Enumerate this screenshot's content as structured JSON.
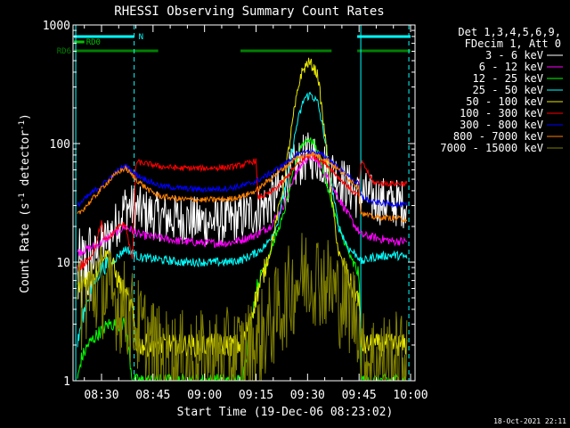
{
  "chart_data": {
    "type": "line",
    "title": "RHESSI Observing Summary Count Rates",
    "xlabel": "Start Time (19-Dec-06 08:23:02)",
    "ylabel_main": "Count Rate (s",
    "ylabel_sup1": "-1",
    "ylabel_mid": " detector",
    "ylabel_sup2": "-1",
    "ylabel_end": ")",
    "y_scale": "log",
    "ylim": [
      1,
      1000
    ],
    "xlim_minutes": [
      0,
      97
    ],
    "x_ticks": [
      {
        "t": 7,
        "label": "08:30"
      },
      {
        "t": 22,
        "label": "08:45"
      },
      {
        "t": 37,
        "label": "09:00"
      },
      {
        "t": 52,
        "label": "09:15"
      },
      {
        "t": 67,
        "label": "09:30"
      },
      {
        "t": 82,
        "label": "09:45"
      },
      {
        "t": 97,
        "label": "10:00"
      }
    ],
    "y_ticks": [
      {
        "v": 1,
        "label": "1"
      },
      {
        "v": 10,
        "label": "10"
      },
      {
        "v": 100,
        "label": "100"
      },
      {
        "v": 1000,
        "label": "1000"
      }
    ],
    "legend": {
      "placement": "right",
      "header": [
        "Det 1,3,4,5,6,9,",
        "FDecim 1, Att 0"
      ],
      "entries": [
        {
          "label": "3 - 6 keV",
          "color": "#ffffff"
        },
        {
          "label": "6 - 12 keV",
          "color": "#ff00ff"
        },
        {
          "label": "12 - 25 keV",
          "color": "#00ff00"
        },
        {
          "label": "25 - 50 keV",
          "color": "#00ffff"
        },
        {
          "label": "50 - 100 keV",
          "color": "#e6e600"
        },
        {
          "label": "100 - 300 keV",
          "color": "#ff0000"
        },
        {
          "label": "300 - 800 keV",
          "color": "#0000ff"
        },
        {
          "label": "800 - 7000 keV",
          "color": "#ff8000"
        },
        {
          "label": "7000 - 15000 keV",
          "color": "#808000"
        }
      ]
    },
    "flags": [
      {
        "label": "N",
        "color": "#00ffff",
        "segments": [
          [
            0,
            16.5
          ],
          [
            82.5,
            97
          ]
        ]
      },
      {
        "label": "RD0",
        "color": "#00c000",
        "segments": [
          [
            0,
            2
          ]
        ]
      },
      {
        "label": "RD6",
        "color": "#008000",
        "segments": [
          [
            0,
            23.5
          ],
          [
            48.5,
            74
          ],
          [
            82.5,
            97
          ]
        ]
      }
    ],
    "night_boundaries": [
      -0.5,
      16.5,
      82.5,
      96.5
    ],
    "series": [
      {
        "name": "3 - 6 keV",
        "color": "#ffffff",
        "points": [
          [
            0,
            7
          ],
          [
            4,
            10
          ],
          [
            8,
            15
          ],
          [
            11,
            20
          ],
          [
            14,
            30
          ],
          [
            18,
            27
          ],
          [
            24,
            24
          ],
          [
            30,
            23
          ],
          [
            37,
            22
          ],
          [
            44,
            22
          ],
          [
            48,
            24
          ],
          [
            52,
            27
          ],
          [
            56,
            32
          ],
          [
            60,
            45
          ],
          [
            63,
            62
          ],
          [
            66,
            75
          ],
          [
            68,
            80
          ],
          [
            70,
            75
          ],
          [
            73,
            64
          ],
          [
            76,
            52
          ],
          [
            80,
            40
          ],
          [
            82,
            35
          ],
          [
            82.5,
            38
          ],
          [
            85,
            35
          ],
          [
            88,
            33
          ],
          [
            91,
            32
          ],
          [
            96,
            31
          ]
        ]
      },
      {
        "name": "6 - 12 keV",
        "color": "#ff00ff",
        "points": [
          [
            0,
            12
          ],
          [
            6,
            14
          ],
          [
            10,
            17
          ],
          [
            14,
            20
          ],
          [
            18,
            17
          ],
          [
            24,
            16
          ],
          [
            30,
            15
          ],
          [
            37,
            14.5
          ],
          [
            44,
            14.5
          ],
          [
            48,
            15.5
          ],
          [
            52,
            17
          ],
          [
            56,
            20
          ],
          [
            60,
            30
          ],
          [
            63,
            52
          ],
          [
            66,
            72
          ],
          [
            68,
            78
          ],
          [
            70,
            70
          ],
          [
            73,
            50
          ],
          [
            76,
            35
          ],
          [
            80,
            22
          ],
          [
            82,
            18
          ],
          [
            82.5,
            17
          ],
          [
            87,
            16
          ],
          [
            92,
            15
          ],
          [
            96,
            15
          ]
        ]
      },
      {
        "name": "12 - 25 keV",
        "color": "#00ff00",
        "points": [
          [
            0,
            1
          ],
          [
            1,
            1.5
          ],
          [
            3,
            2
          ],
          [
            6,
            2.5
          ],
          [
            9,
            3
          ],
          [
            12,
            3
          ],
          [
            14,
            3
          ],
          [
            16,
            1
          ],
          [
            17,
            1
          ],
          [
            48,
            1
          ],
          [
            52,
            6
          ],
          [
            56,
            12
          ],
          [
            60,
            25
          ],
          [
            63,
            60
          ],
          [
            65,
            95
          ],
          [
            67,
            110
          ],
          [
            69,
            100
          ],
          [
            71,
            70
          ],
          [
            73,
            40
          ],
          [
            76,
            20
          ],
          [
            80,
            10
          ],
          [
            82,
            8
          ],
          [
            82.5,
            1
          ],
          [
            83,
            1
          ],
          [
            96,
            1
          ]
        ]
      },
      {
        "name": "25 - 50 keV",
        "color": "#00ffff",
        "points": [
          [
            0,
            2
          ],
          [
            1,
            3
          ],
          [
            3,
            5
          ],
          [
            5,
            7
          ],
          [
            7,
            9
          ],
          [
            10,
            10
          ],
          [
            14,
            13
          ],
          [
            18,
            11
          ],
          [
            24,
            10.5
          ],
          [
            30,
            10
          ],
          [
            37,
            10
          ],
          [
            44,
            10
          ],
          [
            48,
            10.5
          ],
          [
            52,
            12
          ],
          [
            55,
            14
          ],
          [
            58,
            20
          ],
          [
            61,
            50
          ],
          [
            64,
            150
          ],
          [
            66,
            240
          ],
          [
            68,
            260
          ],
          [
            70,
            220
          ],
          [
            72,
            110
          ],
          [
            74,
            45
          ],
          [
            76,
            20
          ],
          [
            79,
            13
          ],
          [
            82,
            11
          ],
          [
            82.5,
            10
          ],
          [
            86,
            11
          ],
          [
            92,
            11.5
          ],
          [
            96,
            11
          ]
        ]
      },
      {
        "name": "50 - 100 keV",
        "color": "#e6e600",
        "points": [
          [
            0,
            6
          ],
          [
            2,
            7
          ],
          [
            5,
            8
          ],
          [
            7,
            11
          ],
          [
            9,
            12
          ],
          [
            11,
            8
          ],
          [
            13,
            6
          ],
          [
            16,
            4
          ],
          [
            17,
            2
          ],
          [
            48,
            2
          ],
          [
            52,
            5
          ],
          [
            56,
            12
          ],
          [
            60,
            45
          ],
          [
            63,
            180
          ],
          [
            65,
            380
          ],
          [
            67,
            480
          ],
          [
            68,
            470
          ],
          [
            70,
            380
          ],
          [
            72,
            120
          ],
          [
            74,
            35
          ],
          [
            76,
            12
          ],
          [
            80,
            6
          ],
          [
            82,
            5
          ],
          [
            82.5,
            2
          ],
          [
            96,
            2
          ]
        ]
      },
      {
        "name": "100 - 300 keV",
        "color": "#ff0000",
        "points": [
          [
            -0.5,
            55
          ],
          [
            0,
            9
          ],
          [
            3,
            10
          ],
          [
            5,
            13
          ],
          [
            7,
            22
          ],
          [
            8,
            15
          ],
          [
            10,
            17
          ],
          [
            12,
            20
          ],
          [
            14,
            21
          ],
          [
            16,
            10
          ],
          [
            17,
            70
          ],
          [
            21,
            67
          ],
          [
            24,
            64
          ],
          [
            30,
            62
          ],
          [
            37,
            62
          ],
          [
            44,
            63
          ],
          [
            48,
            66
          ],
          [
            52,
            72
          ],
          [
            52.5,
            35
          ],
          [
            56,
            38
          ],
          [
            60,
            48
          ],
          [
            63,
            62
          ],
          [
            66,
            75
          ],
          [
            68,
            80
          ],
          [
            70,
            75
          ],
          [
            73,
            65
          ],
          [
            76,
            52
          ],
          [
            80,
            40
          ],
          [
            82,
            36
          ],
          [
            82.5,
            70
          ],
          [
            84,
            62
          ],
          [
            86,
            47
          ],
          [
            90,
            46
          ],
          [
            96,
            46
          ]
        ]
      },
      {
        "name": "300 - 800 keV",
        "color": "#0000ff",
        "points": [
          [
            0,
            30
          ],
          [
            4,
            38
          ],
          [
            8,
            47
          ],
          [
            12,
            60
          ],
          [
            14,
            65
          ],
          [
            17,
            55
          ],
          [
            21,
            48
          ],
          [
            24,
            44
          ],
          [
            30,
            42
          ],
          [
            37,
            41
          ],
          [
            44,
            42
          ],
          [
            48,
            44
          ],
          [
            52,
            48
          ],
          [
            56,
            56
          ],
          [
            60,
            66
          ],
          [
            63,
            77
          ],
          [
            66,
            84
          ],
          [
            68,
            86
          ],
          [
            70,
            83
          ],
          [
            73,
            75
          ],
          [
            76,
            62
          ],
          [
            80,
            50
          ],
          [
            82,
            45
          ],
          [
            82.5,
            36
          ],
          [
            86,
            32
          ],
          [
            92,
            31
          ],
          [
            96,
            30
          ]
        ]
      },
      {
        "name": "800 - 7000 keV",
        "color": "#ff8000",
        "points": [
          [
            0,
            25
          ],
          [
            4,
            33
          ],
          [
            8,
            45
          ],
          [
            12,
            58
          ],
          [
            14,
            62
          ],
          [
            17,
            50
          ],
          [
            21,
            40
          ],
          [
            24,
            36
          ],
          [
            30,
            34
          ],
          [
            37,
            33.5
          ],
          [
            44,
            34
          ],
          [
            48,
            36
          ],
          [
            52,
            40
          ],
          [
            56,
            50
          ],
          [
            60,
            62
          ],
          [
            63,
            73
          ],
          [
            66,
            80
          ],
          [
            68,
            82
          ],
          [
            70,
            79
          ],
          [
            73,
            72
          ],
          [
            76,
            60
          ],
          [
            80,
            48
          ],
          [
            82,
            42
          ],
          [
            82.5,
            26
          ],
          [
            86,
            24
          ],
          [
            92,
            23.5
          ],
          [
            96,
            23
          ]
        ]
      },
      {
        "name": "7000 - 15000 keV",
        "color": "#808000",
        "points": [
          [
            0,
            4
          ],
          [
            2,
            5
          ],
          [
            5,
            6
          ],
          [
            7,
            6
          ],
          [
            10,
            5
          ],
          [
            14,
            4
          ],
          [
            17,
            3
          ],
          [
            22,
            2
          ],
          [
            24,
            1.6
          ],
          [
            30,
            1.5
          ],
          [
            37,
            1.5
          ],
          [
            44,
            1.6
          ],
          [
            48,
            1.7
          ],
          [
            52,
            2
          ],
          [
            56,
            3
          ],
          [
            59,
            4
          ],
          [
            61,
            5
          ],
          [
            64,
            7
          ],
          [
            67,
            8
          ],
          [
            70,
            7.5
          ],
          [
            73,
            6.5
          ],
          [
            76,
            5
          ],
          [
            80,
            4
          ],
          [
            82,
            3.5
          ],
          [
            82.5,
            1.5
          ],
          [
            86,
            1.5
          ],
          [
            92,
            1.5
          ],
          [
            96,
            1.5
          ]
        ]
      }
    ]
  },
  "footer": {
    "timestamp": "18-Oct-2021 22:11"
  }
}
